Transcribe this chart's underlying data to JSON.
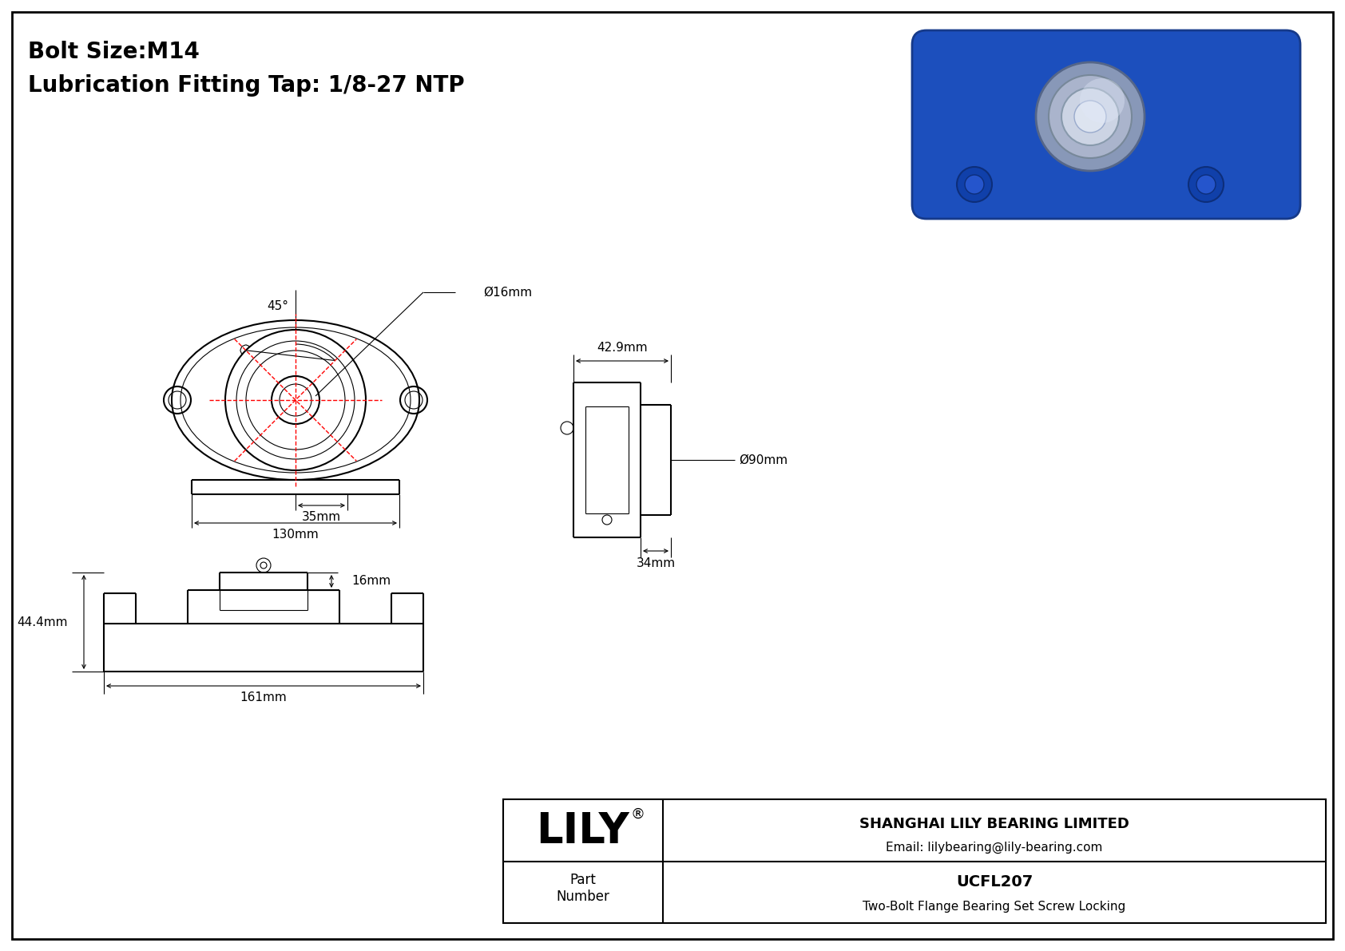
{
  "title_line1": "Bolt Size:M14",
  "title_line2": "Lubrication Fitting Tap: 1/8-27 NTP",
  "part_number": "UCFL207",
  "part_desc": "Two-Bolt Flange Bearing Set Screw Locking",
  "company": "SHANGHAI LILY BEARING LIMITED",
  "email": "Email: lilybearing@lily-bearing.com",
  "logo": "LILY",
  "bg_color": "#ffffff",
  "line_color": "#000000",
  "red_color": "#ff0000",
  "dim1": "45°",
  "dim2": "Ø16mm",
  "dim3": "35mm",
  "dim4": "130mm",
  "dim5": "42.9mm",
  "dim6": "Ø90mm",
  "dim7": "34mm",
  "dim8": "16mm",
  "dim9": "44.4mm",
  "dim10": "161mm"
}
